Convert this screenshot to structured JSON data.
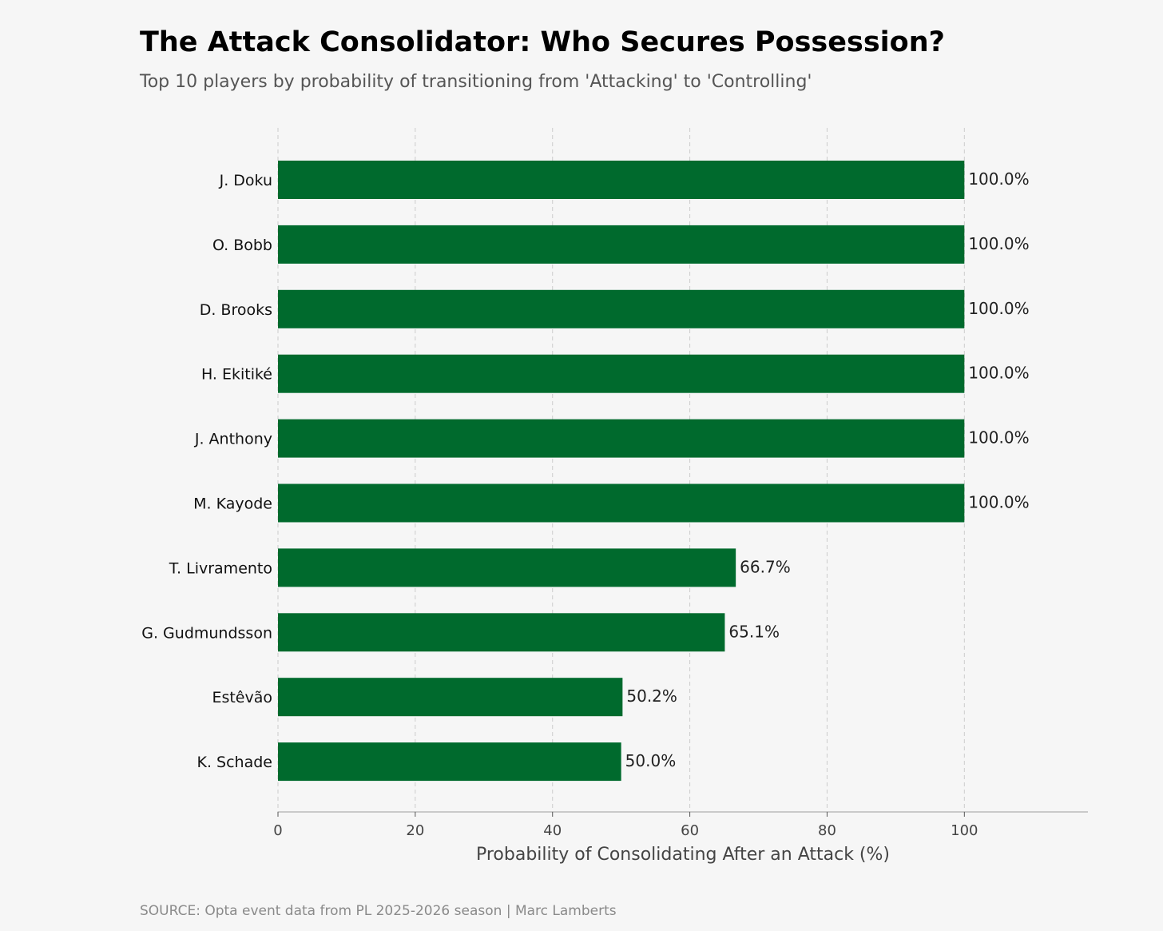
{
  "title": "The Attack Consolidator: Who Secures Possession?",
  "subtitle": "Top 10 players by probability of transitioning from 'Attacking' to 'Controlling'",
  "source": "SOURCE: Opta event data from PL 2025-2026 season | Marc Lamberts",
  "colors": {
    "bar": "#006a2d",
    "background": "#f6f6f6",
    "grid": "#cccccc",
    "axis": "#bbbbbb"
  },
  "chart_data": {
    "type": "bar",
    "orientation": "horizontal",
    "title": "The Attack Consolidator: Who Secures Possession?",
    "subtitle": "Top 10 players by probability of transitioning from 'Attacking' to 'Controlling'",
    "xlabel": "Probability of Consolidating After an Attack (%)",
    "ylabel": "",
    "xlim": [
      0,
      118
    ],
    "xticks": [
      0,
      20,
      40,
      60,
      80,
      100
    ],
    "xtick_labels": [
      "0",
      "20",
      "40",
      "60",
      "80",
      "100"
    ],
    "grid": "vertical dashed",
    "categories": [
      "J. Doku",
      "O. Bobb",
      "D. Brooks",
      "H. Ekitiké",
      "J. Anthony",
      "M. Kayode",
      "T. Livramento",
      "G. Gudmundsson",
      "Estêvão",
      "K. Schade"
    ],
    "values": [
      100.0,
      100.0,
      100.0,
      100.0,
      100.0,
      100.0,
      66.7,
      65.1,
      50.2,
      50.0
    ],
    "value_labels": [
      "100.0%",
      "100.0%",
      "100.0%",
      "100.0%",
      "100.0%",
      "100.0%",
      "66.7%",
      "65.1%",
      "50.2%",
      "50.0%"
    ]
  }
}
